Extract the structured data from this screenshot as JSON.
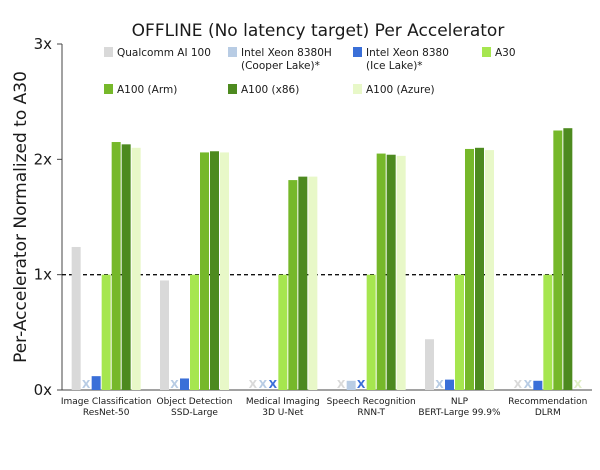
{
  "chart_data": {
    "type": "bar",
    "title": "OFFLINE (No latency target) Per Accelerator",
    "ylabel": "Per-Accelerator Normalized to A30",
    "xlabel": "",
    "ylim": [
      0,
      3
    ],
    "yticks": [
      {
        "value": 0,
        "label": "0x"
      },
      {
        "value": 1,
        "label": "1x"
      },
      {
        "value": 2,
        "label": "2x"
      },
      {
        "value": 3,
        "label": "3x"
      }
    ],
    "reference_line": {
      "value": 1,
      "style": "dashed"
    },
    "grid": false,
    "legend_position": "top",
    "categories": [
      {
        "line1": "Image Classification",
        "line2": "ResNet-50"
      },
      {
        "line1": "Object Detection",
        "line2": "SSD-Large"
      },
      {
        "line1": "Medical Imaging",
        "line2": "3D U-Net"
      },
      {
        "line1": "Speech Recognition",
        "line2": "RNN-T"
      },
      {
        "line1": "NLP",
        "line2": "BERT-Large 99.9%"
      },
      {
        "line1": "Recommendation",
        "line2": "DLRM"
      }
    ],
    "series": [
      {
        "name": "Qualcomm AI 100",
        "legend_lines": [
          "Qualcomm AI 100"
        ],
        "color": "#d9d9d9",
        "values": [
          1.24,
          0.95,
          null,
          null,
          0.44,
          null
        ],
        "not_submitted": [
          false,
          false,
          true,
          true,
          false,
          true
        ]
      },
      {
        "name": "Intel Xeon 8380H (Cooper Lake)*",
        "legend_lines": [
          "Intel Xeon 8380H",
          "(Cooper Lake)*"
        ],
        "color": "#b8cce4",
        "values": [
          null,
          null,
          null,
          0.08,
          null,
          null
        ],
        "not_submitted": [
          true,
          true,
          true,
          false,
          true,
          true
        ]
      },
      {
        "name": "Intel Xeon 8380 (Ice Lake)*",
        "legend_lines": [
          "Intel Xeon 8380",
          "(Ice Lake)*"
        ],
        "color": "#3a6fd8",
        "values": [
          0.12,
          0.1,
          null,
          null,
          0.09,
          0.08
        ],
        "not_submitted": [
          false,
          false,
          true,
          true,
          false,
          false
        ]
      },
      {
        "name": "A30",
        "legend_lines": [
          "A30"
        ],
        "color": "#a6e64f",
        "values": [
          1.0,
          1.0,
          1.0,
          1.0,
          1.0,
          1.0
        ],
        "not_submitted": [
          false,
          false,
          false,
          false,
          false,
          false
        ]
      },
      {
        "name": "A100 (Arm)",
        "legend_lines": [
          "A100 (Arm)"
        ],
        "color": "#76b82a",
        "values": [
          2.15,
          2.06,
          1.82,
          2.05,
          2.09,
          2.25
        ],
        "not_submitted": [
          false,
          false,
          false,
          false,
          false,
          false
        ]
      },
      {
        "name": "A100 (x86)",
        "legend_lines": [
          "A100 (x86)"
        ],
        "color": "#4d8a1f",
        "values": [
          2.13,
          2.07,
          1.85,
          2.04,
          2.1,
          2.27
        ],
        "not_submitted": [
          false,
          false,
          false,
          false,
          false,
          false
        ]
      },
      {
        "name": "A100 (Azure)",
        "legend_lines": [
          "A100 (Azure)"
        ],
        "color": "#e8f8c8",
        "values": [
          2.1,
          2.06,
          1.85,
          2.03,
          2.08,
          null
        ],
        "not_submitted": [
          false,
          false,
          false,
          false,
          false,
          true
        ]
      }
    ],
    "not_submitted_marker": "X"
  }
}
